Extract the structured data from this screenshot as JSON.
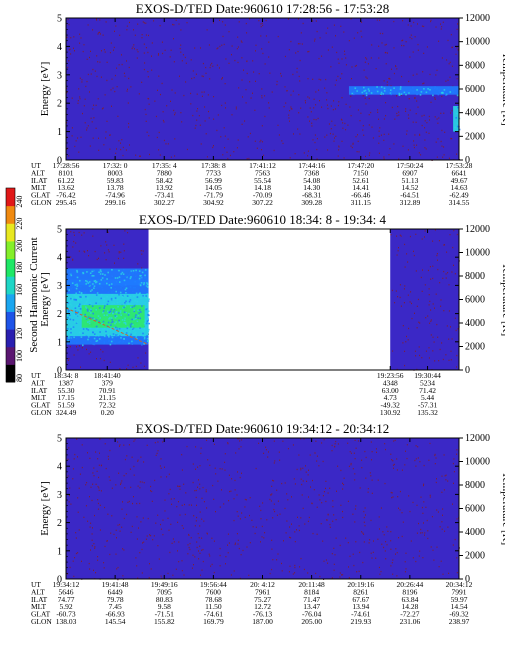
{
  "colors": {
    "background": "#3b28c6",
    "noise": "#7a1f3a",
    "band_blue": "#1e7bff",
    "band_cyan": "#29d4e4",
    "band_green": "#2ee86b",
    "dashed_line": "#c8642a"
  },
  "colorbar": {
    "label": "Second Harmonic Current",
    "ticks": [
      "80",
      "100",
      "120",
      "140",
      "160",
      "180",
      "200",
      "220",
      "240"
    ],
    "colors": [
      "#000000",
      "#5a1670",
      "#2a1fb0",
      "#1e54e8",
      "#1aa6f0",
      "#1ed6c6",
      "#1ee866",
      "#84ef2a",
      "#e8e820",
      "#f08a10",
      "#e01818"
    ]
  },
  "chart_data": [
    {
      "type": "heatmap",
      "title": "EXOS-D/TED",
      "date": "Date:960610",
      "time_range": "17:28:56 - 17:53:28",
      "ylabel": "Energy [eV]",
      "y2label": "Temperature [K]",
      "ylim": [
        0,
        5
      ],
      "yticks": [
        "0",
        "1",
        "2",
        "3",
        "4",
        "5"
      ],
      "y2lim": [
        0,
        12000
      ],
      "y2ticks": [
        "0",
        "2000",
        "4000",
        "6000",
        "8000",
        "10000",
        "12000"
      ],
      "data_span": [
        0,
        1
      ],
      "features": [
        {
          "kind": "band",
          "t": [
            0.72,
            1.0
          ],
          "energy": [
            2.3,
            2.6
          ],
          "color": "band_blue"
        },
        {
          "kind": "band",
          "t": [
            0.985,
            1.0
          ],
          "energy": [
            1.0,
            1.9
          ],
          "color": "band_cyan"
        }
      ],
      "orbit": {
        "labels": [
          "UT",
          "ALT",
          "ILAT",
          "MLT",
          "GLAT",
          "GLON"
        ],
        "columns": [
          [
            "17:28:56",
            "8101",
            "61.22",
            "13.62",
            "-76.42",
            "295.45"
          ],
          [
            "17:32: 0",
            "8003",
            "59.83",
            "13.78",
            "-74.96",
            "299.16"
          ],
          [
            "17:35: 4",
            "7880",
            "58.42",
            "13.92",
            "-73.41",
            "302.27"
          ],
          [
            "17:38: 8",
            "7733",
            "56.99",
            "14.05",
            "-71.79",
            "304.92"
          ],
          [
            "17:41:12",
            "7563",
            "55.54",
            "14.18",
            "-70.09",
            "307.22"
          ],
          [
            "17:44:16",
            "7368",
            "54.08",
            "14.30",
            "-68.31",
            "309.28"
          ],
          [
            "17:47:20",
            "7150",
            "52.61",
            "14.41",
            "-66.46",
            "311.15"
          ],
          [
            "17:50:24",
            "6907",
            "51.13",
            "14.52",
            "-64.51",
            "312.89"
          ],
          [
            "17:53:28",
            "6641",
            "49.67",
            "14.63",
            "-62.49",
            "314.55"
          ]
        ]
      }
    },
    {
      "type": "heatmap",
      "title": "EXOS-D/TED",
      "date": "Date:960610",
      "time_range": "18:34: 8 - 19:34: 4",
      "ylabel": "Energy [eV]",
      "y2label": "Temperature [K]",
      "ylim": [
        0,
        5
      ],
      "yticks": [
        "0",
        "1",
        "2",
        "3",
        "4",
        "5"
      ],
      "y2lim": [
        0,
        12000
      ],
      "y2ticks": [
        "0",
        "2000",
        "4000",
        "6000",
        "8000",
        "10000",
        "12000"
      ],
      "data_span": [
        0,
        0.21
      ],
      "data_span2": [
        0.825,
        1.0
      ],
      "features": [
        {
          "kind": "band",
          "t": [
            0.0,
            0.21
          ],
          "energy": [
            0.9,
            3.2
          ],
          "color": "band_blue"
        },
        {
          "kind": "band",
          "t": [
            0.0,
            0.21
          ],
          "energy": [
            1.2,
            2.7
          ],
          "color": "band_cyan"
        },
        {
          "kind": "band",
          "t": [
            0.04,
            0.2
          ],
          "energy": [
            1.5,
            2.3
          ],
          "color": "band_green"
        },
        {
          "kind": "band",
          "t": [
            0.0,
            0.21
          ],
          "energy": [
            3.0,
            3.6
          ],
          "color": "band_blue"
        },
        {
          "kind": "line",
          "t": [
            0.0,
            0.21
          ],
          "energy": [
            2.2,
            0.9
          ],
          "color": "dashed_line"
        }
      ],
      "orbit": {
        "labels": [
          "UT",
          "ALT",
          "ILAT",
          "MLT",
          "GLAT",
          "GLON"
        ],
        "columns": [
          [
            "18:34: 8",
            "1387",
            "55.30",
            "17.15",
            "51.59",
            "324.49"
          ],
          [
            "18:41:40",
            "379",
            "70.91",
            "21.15",
            "72.32",
            "0.20"
          ],
          [
            "19:23:56",
            "4348",
            "63.00",
            "4.73",
            "-49.32",
            "130.92"
          ],
          [
            "19:30:44",
            "5234",
            "71.42",
            "5.44",
            "-57.31",
            "135.32"
          ]
        ],
        "positions": [
          0,
          0.105,
          0.825,
          0.92
        ]
      }
    },
    {
      "type": "heatmap",
      "title": "EXOS-D/TED",
      "date": "Date:960610",
      "time_range": "19:34:12 - 20:34:12",
      "ylabel": "Energy [eV]",
      "y2label": "Temperature [K]",
      "ylim": [
        0,
        5
      ],
      "yticks": [
        "0",
        "1",
        "2",
        "3",
        "4",
        "5"
      ],
      "y2lim": [
        0,
        12000
      ],
      "y2ticks": [
        "0",
        "2000",
        "4000",
        "6000",
        "8000",
        "10000",
        "12000"
      ],
      "data_span": [
        0,
        1
      ],
      "features": [],
      "orbit": {
        "labels": [
          "UT",
          "ALT",
          "ILAT",
          "MLT",
          "GLAT",
          "GLON"
        ],
        "columns": [
          [
            "19:34:12",
            "5646",
            "74.77",
            "5.92",
            "-60.73",
            "138.03"
          ],
          [
            "19:41:48",
            "6449",
            "79.78",
            "7.45",
            "-66.93",
            "145.54"
          ],
          [
            "19:49:16",
            "7095",
            "80.83",
            "9.58",
            "-71.51",
            "155.82"
          ],
          [
            "19:56:44",
            "7600",
            "78.68",
            "11.50",
            "-74.61",
            "169.79"
          ],
          [
            "20: 4:12",
            "7961",
            "75.27",
            "12.72",
            "-76.13",
            "187.00"
          ],
          [
            "20:11:48",
            "8184",
            "71.47",
            "13.47",
            "-76.04",
            "205.00"
          ],
          [
            "20:19:16",
            "8261",
            "67.67",
            "13.94",
            "-74.61",
            "219.93"
          ],
          [
            "20:26:44",
            "8196",
            "63.84",
            "14.28",
            "-72.27",
            "231.06"
          ],
          [
            "20:34:12",
            "7991",
            "59.97",
            "14.54",
            "-69.32",
            "238.97"
          ]
        ]
      }
    }
  ]
}
